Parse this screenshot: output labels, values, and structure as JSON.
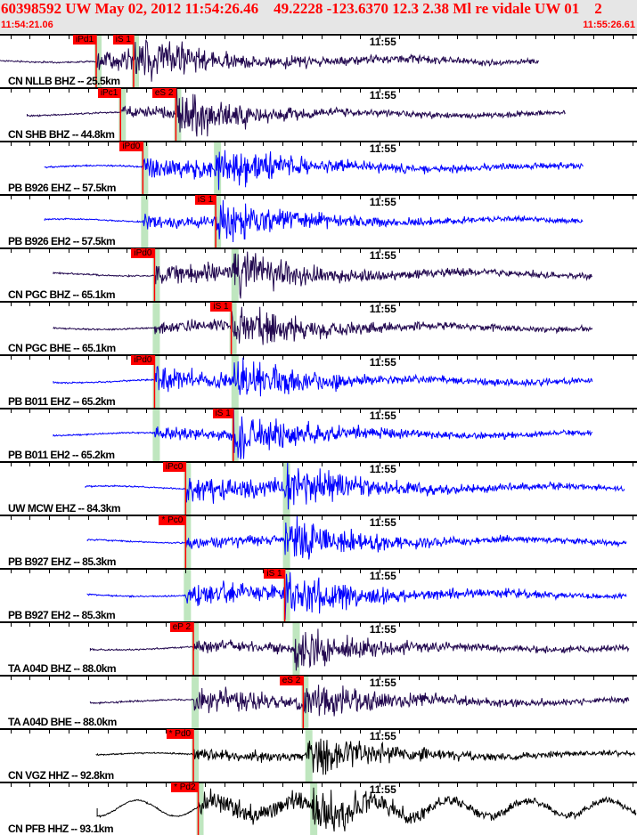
{
  "header": {
    "title": "60398592 UW May 02, 2012 11:54:26.46    49.2228 -123.6370 12.3 2.38 Ml re vidale UW 01    2",
    "start_time": "11:54:21.06",
    "end_time": "11:55:26.61",
    "window_seconds": 65.55
  },
  "minute_label": "11:55",
  "minute_mark_seconds": 38.94,
  "colors": {
    "pick": "#ff0000",
    "band": "#bfe6bf",
    "purple": "#22084f",
    "blue": "#0000ff",
    "black": "#000000"
  },
  "traces": [
    {
      "label": "CN NLLB BHZ -- 25.5km",
      "color": "#22084f",
      "start": 0,
      "end": 55.5,
      "p": 9.9,
      "s": 13.75,
      "picks": [
        {
          "text": "iPd1",
          "t": 9.9
        },
        {
          "text": "iS 1",
          "t": 13.75
        }
      ]
    },
    {
      "label": "CN SHB BHZ -- 44.8km",
      "color": "#22084f",
      "start": 2.8,
      "end": 58.2,
      "p": 12.4,
      "s": 18.1,
      "picks": [
        {
          "text": "iPc1",
          "t": 12.4
        },
        {
          "text": "eS 2",
          "t": 18.1
        }
      ]
    },
    {
      "label": "PB B926 EHZ -- 57.5km",
      "color": "#0000ff",
      "start": 4.6,
      "end": 60.0,
      "p": 14.7,
      "s": 22.2,
      "picks": [
        {
          "text": "iPd0",
          "t": 14.7
        }
      ]
    },
    {
      "label": "PB B926 EH2 -- 57.5km",
      "color": "#0000ff",
      "start": 4.6,
      "end": 60.0,
      "p": 14.7,
      "s": 22.2,
      "picks": [
        {
          "text": "iS 1",
          "t": 22.2
        }
      ]
    },
    {
      "label": "CN PGC BHZ -- 65.1km",
      "color": "#22084f",
      "start": 5.5,
      "end": 61.0,
      "p": 15.9,
      "s": 24.0,
      "picks": [
        {
          "text": "iPd0",
          "t": 15.9
        }
      ]
    },
    {
      "label": "CN PGC BHE -- 65.1km",
      "color": "#22084f",
      "start": 5.5,
      "end": 61.0,
      "p": 15.9,
      "s": 23.8,
      "picks": [
        {
          "text": "iS 1",
          "t": 23.8
        }
      ]
    },
    {
      "label": "PB B011 EHZ -- 65.2km",
      "color": "#0000ff",
      "start": 5.5,
      "end": 61.0,
      "p": 15.9,
      "s": 24.0,
      "picks": [
        {
          "text": "iPd0",
          "t": 15.9
        }
      ]
    },
    {
      "label": "PB B011 EH2 -- 65.2km",
      "color": "#0000ff",
      "start": 5.5,
      "end": 61.0,
      "p": 15.9,
      "s": 24.0,
      "picks": [
        {
          "text": "iS 1",
          "t": 24.0
        }
      ]
    },
    {
      "label": "UW MCW EHZ -- 84.3km",
      "color": "#0000ff",
      "start": 8.8,
      "end": 64.3,
      "p": 19.1,
      "s": 29.3,
      "picks": [
        {
          "text": "iPc0",
          "t": 19.1
        }
      ]
    },
    {
      "label": "PB B927 EHZ -- 85.3km",
      "color": "#0000ff",
      "start": 9.0,
      "end": 64.5,
      "p": 19.1,
      "s": 29.3,
      "picks": [
        {
          "text": "* Pc0",
          "t": 19.1
        }
      ]
    },
    {
      "label": "PB B927 EH2 -- 85.3km",
      "color": "#0000ff",
      "start": 9.0,
      "end": 64.5,
      "p": 19.1,
      "s": 29.3,
      "picks": [
        {
          "text": "iS 1",
          "t": 29.3
        }
      ]
    },
    {
      "label": "TA A04D BHZ -- 88.0km",
      "color": "#22084f",
      "start": 9.3,
      "end": 64.8,
      "p": 19.9,
      "s": 30.3,
      "picks": [
        {
          "text": "eP 2",
          "t": 19.9
        }
      ]
    },
    {
      "label": "TA A04D BHE -- 88.0km",
      "color": "#22084f",
      "start": 9.3,
      "end": 64.8,
      "p": 19.9,
      "s": 31.2,
      "picks": [
        {
          "text": "eS 2",
          "t": 31.2
        }
      ]
    },
    {
      "label": "CN VGZ HHZ -- 92.8km",
      "color": "#000000",
      "start": 9.9,
      "end": 65.4,
      "p": 19.9,
      "s": 31.6,
      "picks": [
        {
          "text": "* Pd0",
          "t": 19.9
        }
      ]
    },
    {
      "label": "CN PFB HHZ -- 93.1km",
      "color": "#000000",
      "start": 10.0,
      "end": 65.5,
      "p": 20.4,
      "s": 32.1,
      "picks": [
        {
          "text": "* Pd2",
          "t": 20.4
        }
      ]
    }
  ]
}
